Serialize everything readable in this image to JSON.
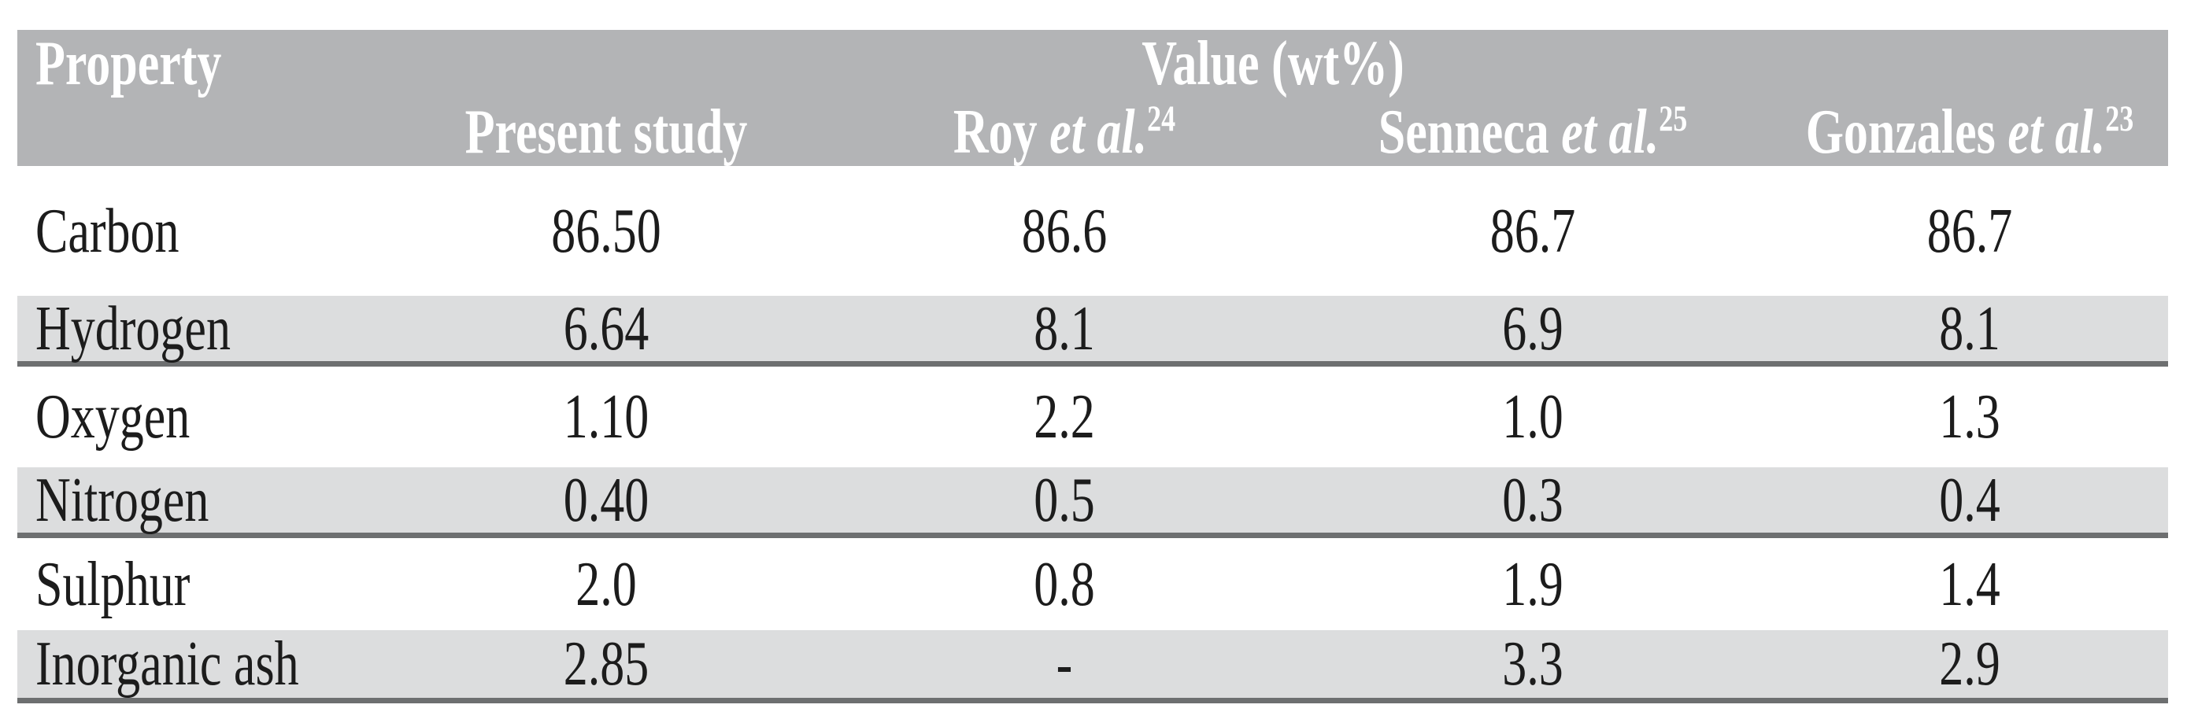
{
  "colors": {
    "page_bg": "#ffffff",
    "header_bg": "#b3b4b6",
    "header_text": "#ffffff",
    "stripe_bg": "#dcddde",
    "rule_color": "#6d6f70",
    "body_text": "#1c1c1c"
  },
  "table": {
    "header": {
      "property_label": "Property",
      "value_group_label": "Value (wt%)",
      "columns": [
        {
          "name": "Present study",
          "italic": "",
          "sup": ""
        },
        {
          "name": "Roy ",
          "italic": "et al.",
          "sup": "24"
        },
        {
          "name": "Senneca ",
          "italic": "et al.",
          "sup": "25"
        },
        {
          "name": "Gonzales ",
          "italic": "et al.",
          "sup": "23"
        }
      ]
    },
    "rows": [
      {
        "property": "Carbon",
        "values": [
          "86.50",
          "86.6",
          "86.7",
          "86.7"
        ]
      },
      {
        "property": "Hydrogen",
        "values": [
          "6.64",
          "8.1",
          "6.9",
          "8.1"
        ]
      },
      {
        "property": "Oxygen",
        "values": [
          "1.10",
          "2.2",
          "1.0",
          "1.3"
        ]
      },
      {
        "property": "Nitrogen",
        "values": [
          "0.40",
          "0.5",
          "0.3",
          "0.4"
        ]
      },
      {
        "property": "Sulphur",
        "values": [
          "2.0",
          "0.8",
          "1.9",
          "1.4"
        ]
      },
      {
        "property": "Inorganic ash",
        "values": [
          "2.85",
          "-",
          "3.3",
          "2.9"
        ]
      }
    ]
  }
}
